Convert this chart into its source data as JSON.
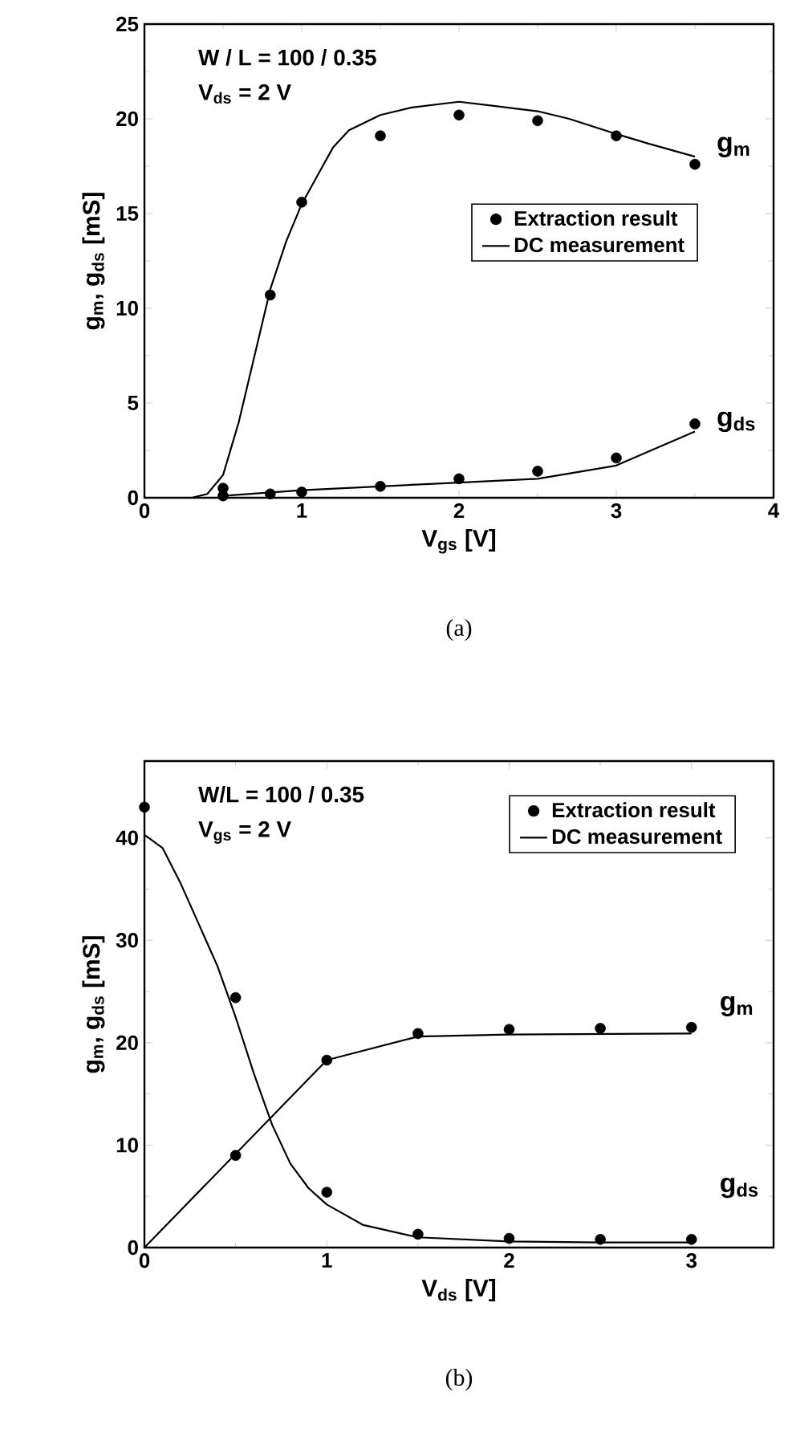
{
  "chart_data": [
    {
      "type": "line",
      "xlabel": "V$_{gs}$ [V]",
      "ylabel": "g$_{m}$, g$_{ds}$ [mS]",
      "xlim": [
        0,
        4
      ],
      "ylim": [
        0,
        25
      ],
      "xticks": [
        0,
        1,
        2,
        3,
        4
      ],
      "yticks": [
        0,
        5,
        10,
        15,
        20,
        25
      ],
      "grid": false,
      "legend": "right",
      "line_style": "solid",
      "series": [
        {
          "type": "scatter",
          "name": "Extraction result",
          "color": "#000000",
          "marker": "circle",
          "x": [
            0.5,
            0.8,
            1,
            1.5,
            2,
            2.5,
            3,
            3.5
          ],
          "values": [
            0.5,
            10.7,
            15.6,
            19.1,
            20.2,
            19.9,
            19.1,
            17.6
          ]
        },
        {
          "name": "DC measurement",
          "color": "#000000",
          "marker": "none",
          "x": [
            0,
            0.3,
            0.4,
            0.5,
            0.6,
            0.7,
            0.8,
            0.9,
            1,
            1.1,
            1.2,
            1.3,
            1.5,
            1.7,
            2,
            2.2,
            2.5,
            2.7,
            3,
            3.2,
            3.5
          ],
          "values": [
            0,
            0,
            0.2,
            1.2,
            4,
            7.5,
            11,
            13.5,
            15.5,
            17,
            18.5,
            19.4,
            20.2,
            20.6,
            20.9,
            20.7,
            20.4,
            20,
            19.2,
            18.7,
            18
          ]
        },
        {
          "type": "scatter",
          "color": "#000000",
          "marker": "circle",
          "x": [
            0.5,
            0.8,
            1,
            1.5,
            2,
            2.5,
            3,
            3.5
          ],
          "values": [
            0.1,
            0.2,
            0.3,
            0.6,
            1,
            1.4,
            2.1,
            3.9
          ]
        },
        {
          "color": "#000000",
          "marker": "none",
          "x": [
            0.5,
            1,
            1.5,
            2,
            2.5,
            3,
            3.5
          ],
          "values": [
            0.1,
            0.4,
            0.6,
            0.8,
            1,
            1.7,
            3.5
          ]
        }
      ],
      "annotations": [
        "W / L = 100 / 0.35",
        "V$_{ds}$ = 2 V",
        "g$_{m}$",
        "g$_{ds}$",
        "(a)"
      ]
    },
    {
      "type": "line",
      "xlabel": "V$_{ds}$ [V]",
      "ylabel": "g$_{m}$, g$_{ds}$ [mS]",
      "xlim": [
        0,
        3.45
      ],
      "ylim": [
        0,
        47.5
      ],
      "xticks": [
        0,
        1,
        2,
        3
      ],
      "yticks": [
        0,
        10,
        20,
        30,
        40
      ],
      "grid": false,
      "legend": "top right",
      "line_style": "solid",
      "series": [
        {
          "type": "scatter",
          "name": "Extraction result",
          "color": "#000000",
          "marker": "circle",
          "x": [
            0.5,
            1,
            1.5,
            2,
            2.5,
            3
          ],
          "values": [
            9,
            18.3,
            20.9,
            21.3,
            21.4,
            21.5
          ]
        },
        {
          "name": "DC measurement",
          "color": "#000000",
          "marker": "none",
          "x": [
            0,
            1,
            1.5,
            2,
            3
          ],
          "values": [
            0,
            18.3,
            20.6,
            20.8,
            20.9
          ]
        },
        {
          "type": "scatter",
          "color": "#000000",
          "marker": "circle",
          "x": [
            0,
            0.5,
            1,
            1.5,
            2,
            2.5,
            3
          ],
          "values": [
            43,
            24.4,
            5.4,
            1.3,
            0.9,
            0.8,
            0.8
          ]
        },
        {
          "color": "#000000",
          "marker": "none",
          "x": [
            0,
            0.1,
            0.2,
            0.3,
            0.4,
            0.5,
            0.6,
            0.7,
            0.8,
            0.9,
            1,
            1.2,
            1.5,
            2,
            2.5,
            3
          ],
          "values": [
            40.3,
            39,
            35.5,
            31.5,
            27.5,
            22.5,
            17,
            12,
            8.2,
            5.8,
            4.2,
            2.2,
            1,
            0.6,
            0.5,
            0.5
          ]
        }
      ],
      "annotations": [
        "W/L = 100 / 0.35",
        "V$_{gs}$ = 2 V",
        "g$_{m}$",
        "g$_{ds}$",
        "(b)"
      ]
    }
  ]
}
